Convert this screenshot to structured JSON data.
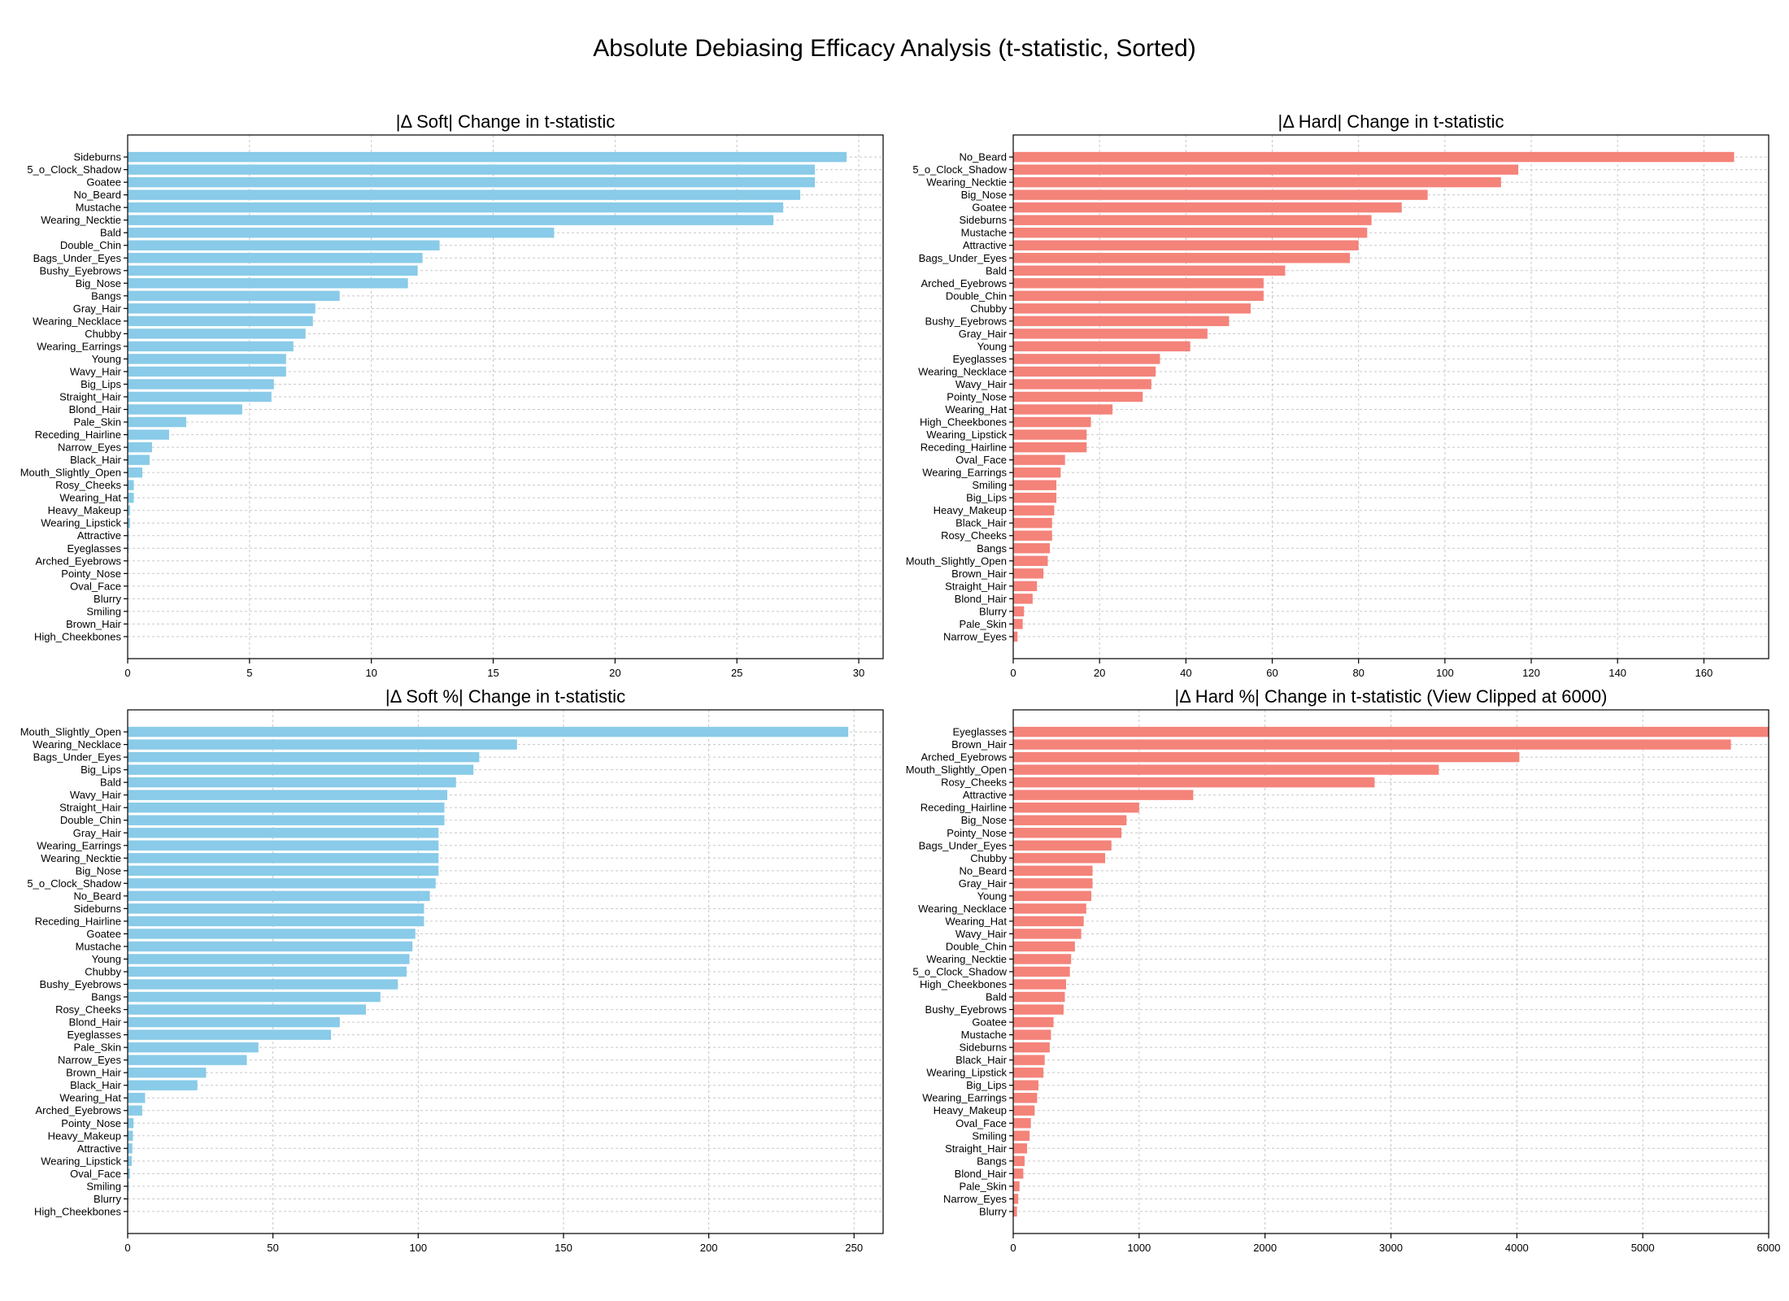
{
  "figure": {
    "title": "Absolute Debiasing Efficacy Analysis (t-statistic, Sorted)"
  },
  "colors": {
    "soft": "#89cbe8",
    "hard": "#f4837a"
  },
  "chart_data": [
    {
      "type": "bar",
      "orientation": "horizontal",
      "title": "|Δ Soft| Change in t-statistic",
      "xlim": [
        0,
        31
      ],
      "xticks": [
        0,
        5,
        10,
        15,
        20,
        25,
        30
      ],
      "grid": true,
      "color": "#89cbe8",
      "categories": [
        "Sideburns",
        "5_o_Clock_Shadow",
        "Goatee",
        "No_Beard",
        "Mustache",
        "Wearing_Necktie",
        "Bald",
        "Double_Chin",
        "Bags_Under_Eyes",
        "Bushy_Eyebrows",
        "Big_Nose",
        "Bangs",
        "Gray_Hair",
        "Wearing_Necklace",
        "Chubby",
        "Wearing_Earrings",
        "Young",
        "Wavy_Hair",
        "Big_Lips",
        "Straight_Hair",
        "Blond_Hair",
        "Pale_Skin",
        "Receding_Hairline",
        "Narrow_Eyes",
        "Black_Hair",
        "Mouth_Slightly_Open",
        "Rosy_Cheeks",
        "Wearing_Hat",
        "Heavy_Makeup",
        "Wearing_Lipstick",
        "Attractive",
        "Eyeglasses",
        "Arched_Eyebrows",
        "Pointy_Nose",
        "Oval_Face",
        "Blurry",
        "Smiling",
        "Brown_Hair",
        "High_Cheekbones"
      ],
      "values": [
        29.5,
        28.2,
        28.2,
        27.6,
        26.9,
        26.5,
        17.5,
        12.8,
        12.1,
        11.9,
        11.5,
        8.7,
        7.7,
        7.6,
        7.3,
        6.8,
        6.5,
        6.5,
        6.0,
        5.9,
        4.7,
        2.4,
        1.7,
        1.0,
        0.9,
        0.6,
        0.25,
        0.25,
        0.1,
        0.1,
        0.05,
        0.04,
        0.03,
        0.02,
        0.02,
        0.01,
        0.01,
        0.01,
        0.0
      ]
    },
    {
      "type": "bar",
      "orientation": "horizontal",
      "title": "|Δ Hard| Change in t-statistic",
      "xlim": [
        0,
        175
      ],
      "xticks": [
        0,
        20,
        40,
        60,
        80,
        100,
        120,
        140,
        160
      ],
      "grid": true,
      "color": "#f4837a",
      "categories": [
        "No_Beard",
        "5_o_Clock_Shadow",
        "Wearing_Necktie",
        "Big_Nose",
        "Goatee",
        "Sideburns",
        "Mustache",
        "Attractive",
        "Bags_Under_Eyes",
        "Bald",
        "Arched_Eyebrows",
        "Double_Chin",
        "Chubby",
        "Bushy_Eyebrows",
        "Gray_Hair",
        "Young",
        "Eyeglasses",
        "Wearing_Necklace",
        "Wavy_Hair",
        "Pointy_Nose",
        "Wearing_Hat",
        "High_Cheekbones",
        "Wearing_Lipstick",
        "Receding_Hairline",
        "Oval_Face",
        "Wearing_Earrings",
        "Smiling",
        "Big_Lips",
        "Heavy_Makeup",
        "Black_Hair",
        "Rosy_Cheeks",
        "Bangs",
        "Mouth_Slightly_Open",
        "Brown_Hair",
        "Straight_Hair",
        "Blond_Hair",
        "Blurry",
        "Pale_Skin",
        "Narrow_Eyes"
      ],
      "values": [
        167,
        117,
        113,
        96,
        90,
        83,
        82,
        80,
        78,
        63,
        58,
        58,
        55,
        50,
        45,
        41,
        34,
        33,
        32,
        30,
        23,
        18,
        17,
        17,
        12,
        11,
        10,
        10,
        9.5,
        9,
        9,
        8.5,
        8,
        7,
        5.5,
        4.5,
        2.5,
        2.2,
        1
      ]
    },
    {
      "type": "bar",
      "orientation": "horizontal",
      "title": "|Δ Soft %| Change in t-statistic",
      "xlim": [
        0,
        260
      ],
      "xticks": [
        0,
        50,
        100,
        150,
        200,
        250
      ],
      "grid": true,
      "color": "#89cbe8",
      "categories": [
        "Mouth_Slightly_Open",
        "Wearing_Necklace",
        "Bags_Under_Eyes",
        "Big_Lips",
        "Bald",
        "Wavy_Hair",
        "Straight_Hair",
        "Double_Chin",
        "Gray_Hair",
        "Wearing_Earrings",
        "Wearing_Necktie",
        "Big_Nose",
        "5_o_Clock_Shadow",
        "No_Beard",
        "Sideburns",
        "Receding_Hairline",
        "Goatee",
        "Mustache",
        "Young",
        "Chubby",
        "Bushy_Eyebrows",
        "Bangs",
        "Rosy_Cheeks",
        "Blond_Hair",
        "Eyeglasses",
        "Pale_Skin",
        "Narrow_Eyes",
        "Brown_Hair",
        "Black_Hair",
        "Wearing_Hat",
        "Arched_Eyebrows",
        "Pointy_Nose",
        "Heavy_Makeup",
        "Attractive",
        "Wearing_Lipstick",
        "Oval_Face",
        "Smiling",
        "Blurry",
        "High_Cheekbones"
      ],
      "values": [
        248,
        134,
        121,
        119,
        113,
        110,
        109,
        109,
        107,
        107,
        107,
        107,
        106,
        104,
        102,
        102,
        99,
        98,
        97,
        96,
        93,
        87,
        82,
        73,
        70,
        45,
        41,
        27,
        24,
        6,
        5,
        2,
        1.8,
        1.6,
        1.4,
        0.8,
        0.4,
        0.2,
        0.1
      ]
    },
    {
      "type": "bar",
      "orientation": "horizontal",
      "title": "|Δ Hard %| Change in t-statistic (View Clipped at 6000)",
      "xlim": [
        0,
        6000
      ],
      "xticks": [
        0,
        1000,
        2000,
        3000,
        4000,
        5000,
        6000
      ],
      "grid": true,
      "color": "#f4837a",
      "categories": [
        "Eyeglasses",
        "Brown_Hair",
        "Arched_Eyebrows",
        "Mouth_Slightly_Open",
        "Rosy_Cheeks",
        "Attractive",
        "Receding_Hairline",
        "Big_Nose",
        "Pointy_Nose",
        "Bags_Under_Eyes",
        "Chubby",
        "No_Beard",
        "Gray_Hair",
        "Young",
        "Wearing_Necklace",
        "Wearing_Hat",
        "Wavy_Hair",
        "Double_Chin",
        "Wearing_Necktie",
        "5_o_Clock_Shadow",
        "High_Cheekbones",
        "Bald",
        "Bushy_Eyebrows",
        "Goatee",
        "Mustache",
        "Sideburns",
        "Black_Hair",
        "Wearing_Lipstick",
        "Big_Lips",
        "Wearing_Earrings",
        "Heavy_Makeup",
        "Oval_Face",
        "Smiling",
        "Straight_Hair",
        "Bangs",
        "Blond_Hair",
        "Pale_Skin",
        "Narrow_Eyes",
        "Blurry"
      ],
      "values": [
        6000,
        5700,
        4020,
        3380,
        2870,
        1430,
        1000,
        900,
        860,
        780,
        730,
        630,
        630,
        620,
        580,
        560,
        540,
        490,
        460,
        450,
        420,
        410,
        400,
        320,
        300,
        290,
        250,
        240,
        200,
        190,
        170,
        140,
        130,
        110,
        90,
        80,
        50,
        40,
        30
      ]
    }
  ]
}
